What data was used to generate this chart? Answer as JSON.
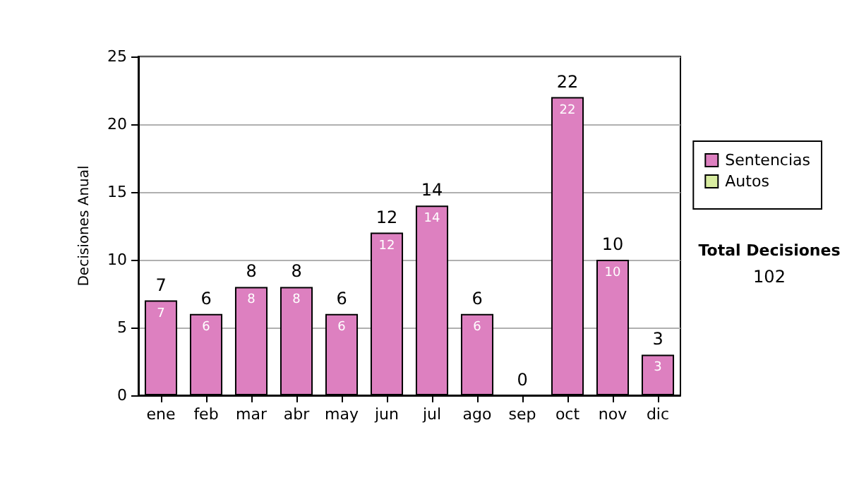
{
  "chart_data": {
    "type": "bar",
    "stacked": true,
    "ylabel": "Decisiones Anual",
    "categories": [
      "ene",
      "feb",
      "mar",
      "abr",
      "may",
      "jun",
      "jul",
      "ago",
      "sep",
      "oct",
      "nov",
      "dic"
    ],
    "series": [
      {
        "name": "Sentencias",
        "color": "#dd80c0",
        "values": [
          7,
          6,
          8,
          8,
          6,
          12,
          14,
          6,
          0,
          22,
          10,
          3
        ],
        "value_labels": [
          "7",
          "6",
          "8",
          "8",
          "6",
          "12",
          "14",
          "6",
          null,
          "22",
          "10",
          "3"
        ]
      },
      {
        "name": "Autos",
        "color": "#d8eca0",
        "values": [
          0,
          0,
          0,
          0,
          0,
          0,
          0,
          0,
          0,
          0,
          0,
          0
        ]
      }
    ],
    "totals": [
      "7",
      "6",
      "8",
      "8",
      "6",
      "12",
      "14",
      "6",
      "0",
      "22",
      "10",
      "3"
    ],
    "ylim": [
      0,
      25
    ],
    "yticks": [
      0,
      5,
      10,
      15,
      20,
      25
    ],
    "grid": "y",
    "legend": "right",
    "annotations": [
      "Total Decisiones",
      "102"
    ]
  }
}
